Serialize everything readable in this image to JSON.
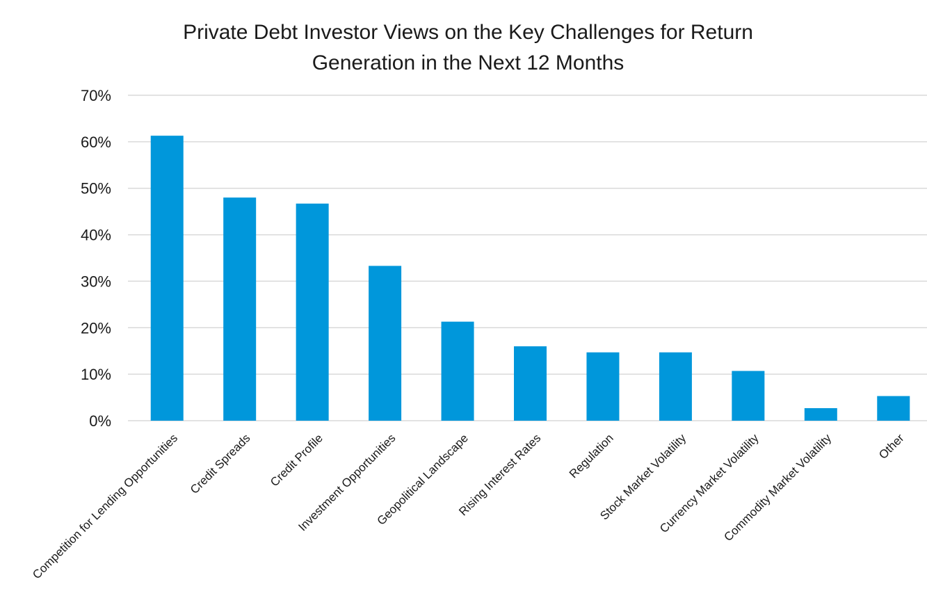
{
  "chart_data": {
    "type": "bar",
    "title_lines": [
      "Private Debt Investor Views on the Key Challenges for Return",
      "Generation in the Next 12 Months"
    ],
    "categories": [
      "Competition for Lending Opportunities",
      "Credit Spreads",
      "Credit Profile",
      "Investment Opportunities",
      "Geopolitical Landscape",
      "Rising Interest Rates",
      "Regulation",
      "Stock Market Volatility",
      "Currency Market Volatility",
      "Commodity Market Volatility",
      "Other"
    ],
    "values": [
      61.3,
      48.0,
      46.7,
      33.3,
      21.3,
      16.0,
      14.7,
      14.7,
      10.7,
      2.7,
      5.3
    ],
    "unit": "%",
    "ylim": [
      0,
      70
    ],
    "yticks": [
      0,
      10,
      20,
      30,
      40,
      50,
      60,
      70
    ],
    "ytick_labels": [
      "0%",
      "10%",
      "20%",
      "30%",
      "40%",
      "50%",
      "60%",
      "70%"
    ],
    "grid": true,
    "bar_color": "#0097db",
    "xlabel": "",
    "ylabel": ""
  }
}
